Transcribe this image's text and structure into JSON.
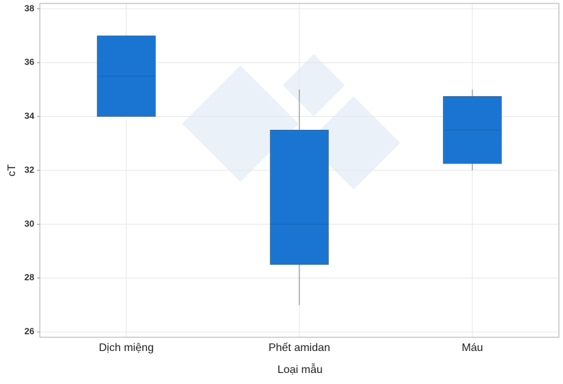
{
  "chart_data": {
    "type": "box",
    "x_label": "Loại mẫu",
    "y_label": "cT",
    "categories": [
      "Dịch miệng",
      "Phết amidan",
      "Máu"
    ],
    "boxes": [
      {
        "min": 34,
        "q1": 34,
        "median": 35.5,
        "q3": 37,
        "max": 37
      },
      {
        "min": 27,
        "q1": 28.5,
        "median": 30,
        "q3": 33.5,
        "max": 35
      },
      {
        "min": 32,
        "q1": 32.25,
        "median": 33.5,
        "q3": 34.75,
        "max": 35
      }
    ],
    "color": "#1a75d2",
    "ylim": [
      25.8,
      38.2
    ],
    "yticks": [
      26,
      28,
      30,
      32,
      34,
      36,
      38
    ],
    "grid": true
  }
}
